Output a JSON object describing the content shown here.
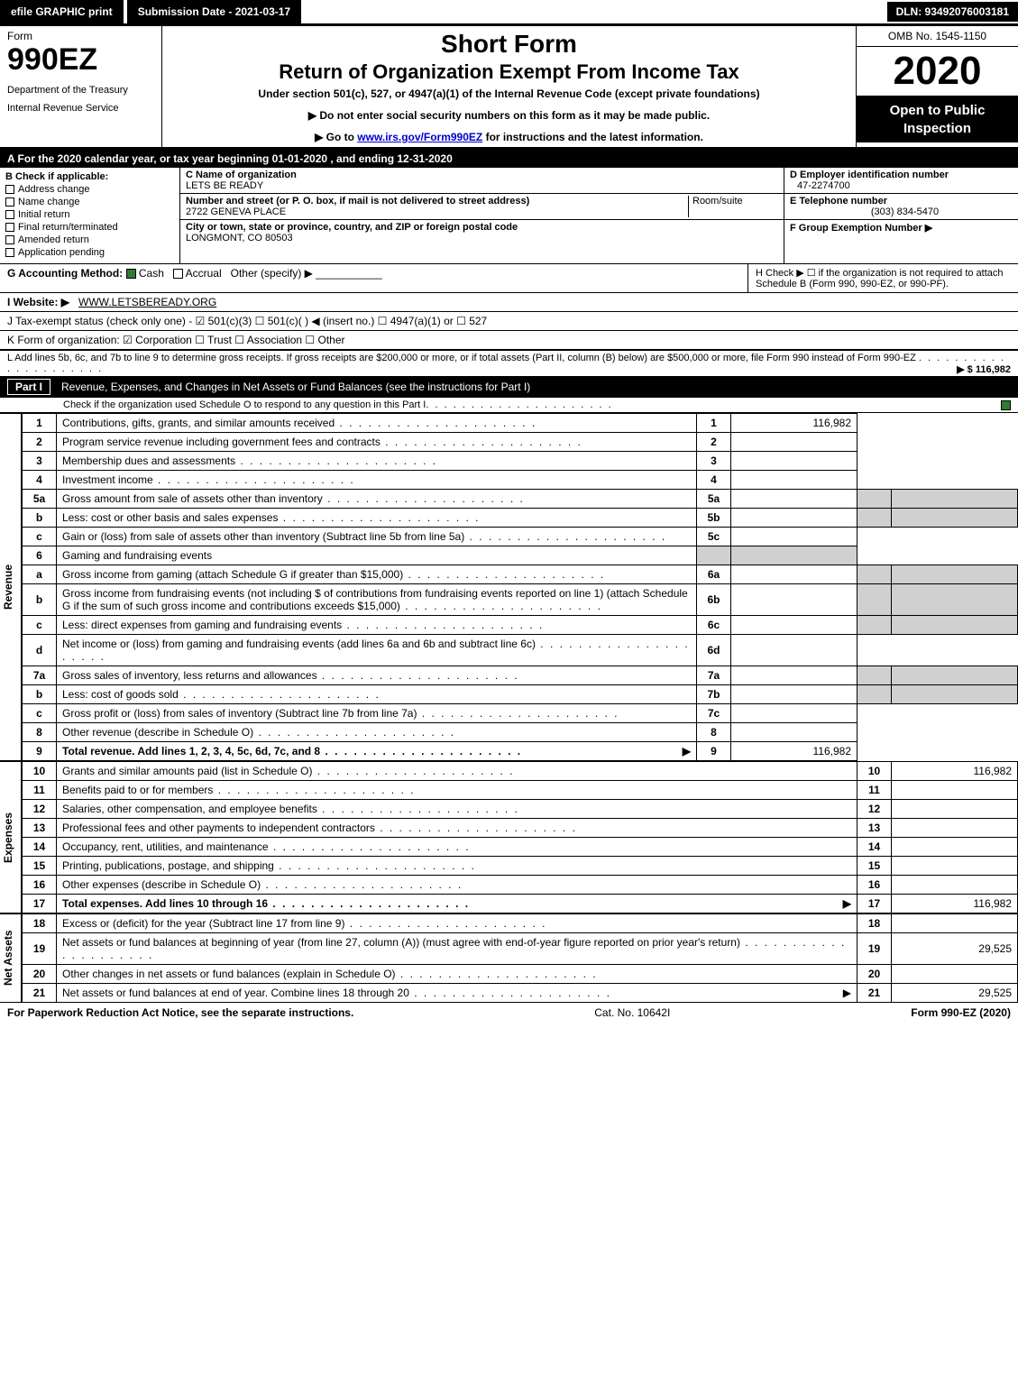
{
  "topbar": {
    "efile": "efile GRAPHIC print",
    "submission": "Submission Date - 2021-03-17",
    "dln": "DLN: 93492076003181"
  },
  "header": {
    "form": "Form",
    "form_no": "990EZ",
    "dept": "Department of the Treasury",
    "irs": "Internal Revenue Service",
    "short_form": "Short Form",
    "title": "Return of Organization Exempt From Income Tax",
    "under": "Under section 501(c), 527, or 4947(a)(1) of the Internal Revenue Code (except private foundations)",
    "line1": "▶ Do not enter social security numbers on this form as it may be made public.",
    "line2_a": "▶ Go to ",
    "line2_link": "www.irs.gov/Form990EZ",
    "line2_b": " for instructions and the latest information.",
    "omb": "OMB No. 1545-1150",
    "year": "2020",
    "open": "Open to Public Inspection"
  },
  "tax_year": "A  For the 2020 calendar year, or tax year beginning 01-01-2020 , and ending 12-31-2020",
  "box_b": {
    "title": "B  Check if applicable:",
    "items": [
      "Address change",
      "Name change",
      "Initial return",
      "Final return/terminated",
      "Amended return",
      "Application pending"
    ]
  },
  "box_c": {
    "name_label": "C Name of organization",
    "name": "LETS BE READY",
    "street_label": "Number and street (or P. O. box, if mail is not delivered to street address)",
    "room_label": "Room/suite",
    "street": "2722 GENEVA PLACE",
    "city_label": "City or town, state or province, country, and ZIP or foreign postal code",
    "city": "LONGMONT, CO  80503"
  },
  "box_d": {
    "ein_label": "D Employer identification number",
    "ein": "47-2274700",
    "tel_label": "E Telephone number",
    "tel": "(303) 834-5470",
    "grp_label": "F Group Exemption Number   ▶"
  },
  "row_g": {
    "label": "G Accounting Method:",
    "cash": "Cash",
    "accrual": "Accrual",
    "other": "Other (specify) ▶"
  },
  "row_h": "H  Check ▶ ☐ if the organization is not required to attach Schedule B (Form 990, 990-EZ, or 990-PF).",
  "row_i": {
    "label": "I Website: ▶",
    "val": "WWW.LETSBEREADY.ORG"
  },
  "row_j": "J Tax-exempt status (check only one) - ☑ 501(c)(3) ☐ 501(c)(  ) ◀ (insert no.) ☐ 4947(a)(1) or ☐ 527",
  "row_k": "K Form of organization:  ☑ Corporation  ☐ Trust  ☐ Association  ☐ Other",
  "row_l": {
    "text": "L Add lines 5b, 6c, and 7b to line 9 to determine gross receipts. If gross receipts are $200,000 or more, or if total assets (Part II, column (B) below) are $500,000 or more, file Form 990 instead of Form 990-EZ",
    "amount": "▶ $ 116,982"
  },
  "part1": {
    "label": "Part I",
    "title": "Revenue, Expenses, and Changes in Net Assets or Fund Balances (see the instructions for Part I)",
    "sub": "Check if the organization used Schedule O to respond to any question in this Part I"
  },
  "sides": {
    "rev": "Revenue",
    "exp": "Expenses",
    "net": "Net Assets"
  },
  "rev_lines": [
    {
      "n": "1",
      "d": "Contributions, gifts, grants, and similar amounts received",
      "r": "1",
      "a": "116,982"
    },
    {
      "n": "2",
      "d": "Program service revenue including government fees and contracts",
      "r": "2",
      "a": ""
    },
    {
      "n": "3",
      "d": "Membership dues and assessments",
      "r": "3",
      "a": ""
    },
    {
      "n": "4",
      "d": "Investment income",
      "r": "4",
      "a": ""
    }
  ],
  "line5a": {
    "n": "5a",
    "d": "Gross amount from sale of assets other than inventory",
    "sn": "5a",
    "sa": ""
  },
  "line5b": {
    "n": "b",
    "d": "Less: cost or other basis and sales expenses",
    "sn": "5b",
    "sa": ""
  },
  "line5c": {
    "n": "c",
    "d": "Gain or (loss) from sale of assets other than inventory (Subtract line 5b from line 5a)",
    "r": "5c",
    "a": ""
  },
  "line6": {
    "n": "6",
    "d": "Gaming and fundraising events"
  },
  "line6a": {
    "n": "a",
    "d": "Gross income from gaming (attach Schedule G if greater than $15,000)",
    "sn": "6a",
    "sa": ""
  },
  "line6b": {
    "n": "b",
    "d": "Gross income from fundraising events (not including $                of contributions from fundraising events reported on line 1) (attach Schedule G if the sum of such gross income and contributions exceeds $15,000)",
    "sn": "6b",
    "sa": ""
  },
  "line6c": {
    "n": "c",
    "d": "Less: direct expenses from gaming and fundraising events",
    "sn": "6c",
    "sa": ""
  },
  "line6d": {
    "n": "d",
    "d": "Net income or (loss) from gaming and fundraising events (add lines 6a and 6b and subtract line 6c)",
    "r": "6d",
    "a": ""
  },
  "line7a": {
    "n": "7a",
    "d": "Gross sales of inventory, less returns and allowances",
    "sn": "7a",
    "sa": ""
  },
  "line7b": {
    "n": "b",
    "d": "Less: cost of goods sold",
    "sn": "7b",
    "sa": ""
  },
  "line7c": {
    "n": "c",
    "d": "Gross profit or (loss) from sales of inventory (Subtract line 7b from line 7a)",
    "r": "7c",
    "a": ""
  },
  "line8": {
    "n": "8",
    "d": "Other revenue (describe in Schedule O)",
    "r": "8",
    "a": ""
  },
  "line9": {
    "n": "9",
    "d": "Total revenue. Add lines 1, 2, 3, 4, 5c, 6d, 7c, and 8",
    "r": "9",
    "a": "116,982",
    "arrow": "▶"
  },
  "exp_lines": [
    {
      "n": "10",
      "d": "Grants and similar amounts paid (list in Schedule O)",
      "r": "10",
      "a": "116,982"
    },
    {
      "n": "11",
      "d": "Benefits paid to or for members",
      "r": "11",
      "a": ""
    },
    {
      "n": "12",
      "d": "Salaries, other compensation, and employee benefits",
      "r": "12",
      "a": ""
    },
    {
      "n": "13",
      "d": "Professional fees and other payments to independent contractors",
      "r": "13",
      "a": ""
    },
    {
      "n": "14",
      "d": "Occupancy, rent, utilities, and maintenance",
      "r": "14",
      "a": ""
    },
    {
      "n": "15",
      "d": "Printing, publications, postage, and shipping",
      "r": "15",
      "a": ""
    },
    {
      "n": "16",
      "d": "Other expenses (describe in Schedule O)",
      "r": "16",
      "a": ""
    },
    {
      "n": "17",
      "d": "Total expenses. Add lines 10 through 16",
      "r": "17",
      "a": "116,982",
      "arrow": "▶",
      "bold": true
    }
  ],
  "net_lines": [
    {
      "n": "18",
      "d": "Excess or (deficit) for the year (Subtract line 17 from line 9)",
      "r": "18",
      "a": ""
    },
    {
      "n": "19",
      "d": "Net assets or fund balances at beginning of year (from line 27, column (A)) (must agree with end-of-year figure reported on prior year's return)",
      "r": "19",
      "a": "29,525"
    },
    {
      "n": "20",
      "d": "Other changes in net assets or fund balances (explain in Schedule O)",
      "r": "20",
      "a": ""
    },
    {
      "n": "21",
      "d": "Net assets or fund balances at end of year. Combine lines 18 through 20",
      "r": "21",
      "a": "29,525",
      "arrow": "▶"
    }
  ],
  "footer": {
    "left": "For Paperwork Reduction Act Notice, see the separate instructions.",
    "mid": "Cat. No. 10642I",
    "right": "Form 990-EZ (2020)"
  },
  "colors": {
    "black": "#000000",
    "white": "#ffffff",
    "grey": "#d0d0d0",
    "check_green": "#2e7d32",
    "link": "#0000cc"
  }
}
